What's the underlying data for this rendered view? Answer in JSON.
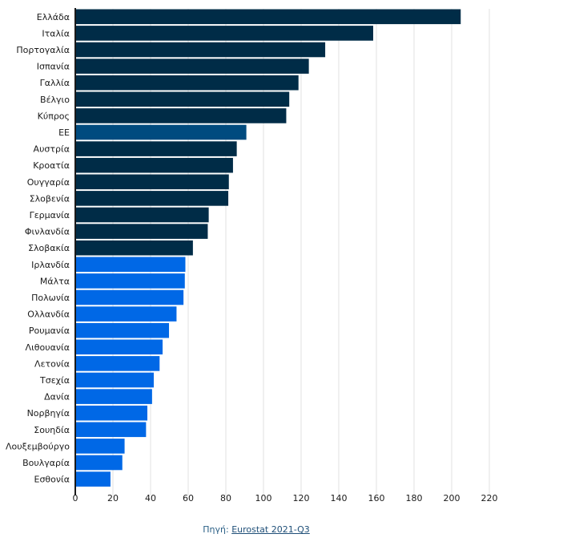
{
  "chart_data": {
    "type": "bar",
    "orientation": "horizontal",
    "categories": [
      "Ελλάδα",
      "Ιταλία",
      "Πορτογαλία",
      "Ισπανία",
      "Γαλλία",
      "Βέλγιο",
      "Κύπρος",
      "ΕΕ",
      "Αυστρία",
      "Κροατία",
      "Ουγγαρία",
      "Σλοβενία",
      "Γερμανία",
      "Φινλανδία",
      "Σλοβακία",
      "Ιρλανδία",
      "Μάλτα",
      "Πολωνία",
      "Ολλανδία",
      "Ρουμανία",
      "Λιθουανία",
      "Λετονία",
      "Τσεχία",
      "Δανία",
      "Νορβηγία",
      "Σουηδία",
      "Λουξεμβούργο",
      "Βουλγαρία",
      "Εσθονία"
    ],
    "values": [
      204.8,
      158.3,
      132.8,
      124.1,
      118.6,
      113.7,
      112.1,
      90.9,
      85.8,
      83.8,
      81.6,
      81.3,
      70.9,
      70.4,
      62.5,
      58.5,
      58.2,
      57.5,
      53.8,
      49.8,
      46.4,
      44.8,
      41.7,
      40.8,
      38.3,
      37.6,
      26.2,
      25.0,
      18.7
    ],
    "bar_colors": [
      "#002c47",
      "#002c47",
      "#002c47",
      "#002c47",
      "#002c47",
      "#002c47",
      "#002c47",
      "#004b7f",
      "#002c47",
      "#002c47",
      "#002c47",
      "#002c47",
      "#002c47",
      "#002c47",
      "#002c47",
      "#0068e6",
      "#0068e6",
      "#0068e6",
      "#0068e6",
      "#0068e6",
      "#0068e6",
      "#0068e6",
      "#0068e6",
      "#0068e6",
      "#0068e6",
      "#0068e6",
      "#0068e6",
      "#0068e6",
      "#0068e6"
    ],
    "xticks": [
      "0",
      "20",
      "40",
      "60",
      "80",
      "100",
      "120",
      "140",
      "160",
      "180",
      "200",
      "220"
    ],
    "xlim": [
      0,
      222
    ],
    "grid": true,
    "colors": {
      "grid": "#e0e0e0",
      "axis": "#1a1a1a"
    }
  },
  "source": {
    "prefix": "Πηγή: ",
    "link_text": "Eurostat 2021-Q3"
  }
}
